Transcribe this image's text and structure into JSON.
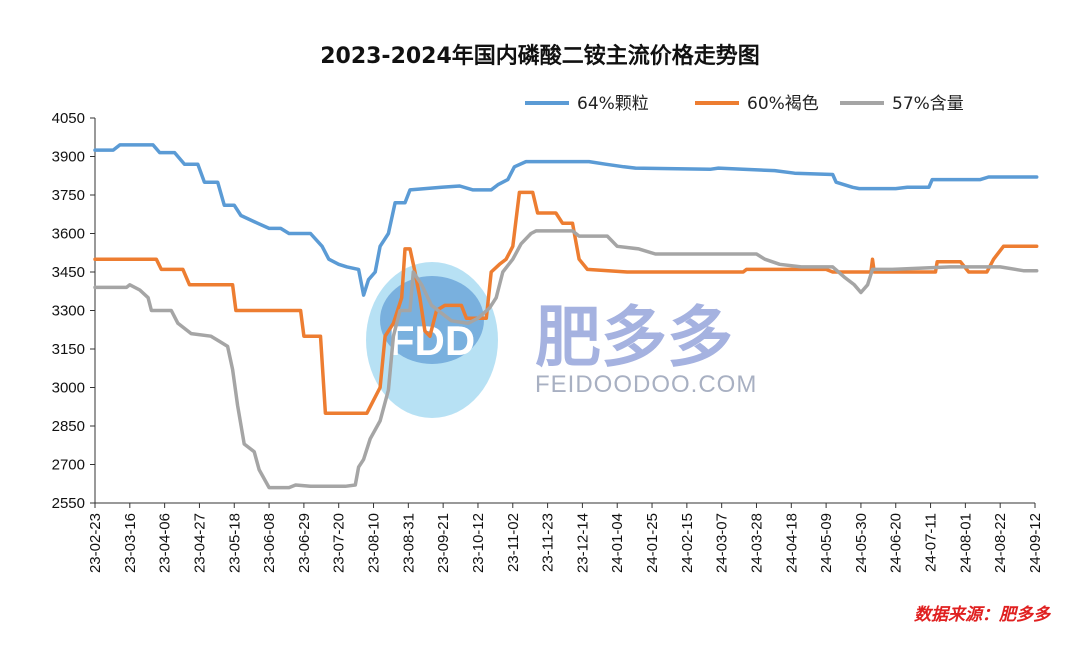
{
  "title": "2023-2024年国内磷酸二铵主流价格走势图",
  "source_note": "数据来源：肥多多",
  "watermark": {
    "cn": "肥多多",
    "en": "FEIDOODOO.COM",
    "logo": "FDD"
  },
  "chart_data": {
    "type": "line",
    "title": "2023-2024年国内磷酸二铵主流价格走势图",
    "xlabel": "",
    "ylabel": "",
    "ylim": [
      2550,
      4050
    ],
    "y_ticks": [
      2550,
      2700,
      2850,
      3000,
      3150,
      3300,
      3450,
      3600,
      3750,
      3900,
      4050
    ],
    "x_tick_labels": [
      "23-02-23",
      "23-03-16",
      "23-04-06",
      "23-04-27",
      "23-05-18",
      "23-06-08",
      "23-06-29",
      "23-07-20",
      "23-08-10",
      "23-08-31",
      "23-09-21",
      "23-10-12",
      "23-11-02",
      "23-11-23",
      "23-12-14",
      "24-01-04",
      "24-01-25",
      "24-02-15",
      "24-03-07",
      "24-03-28",
      "24-04-18",
      "24-05-09",
      "24-05-30",
      "24-06-20",
      "24-07-11",
      "24-08-01",
      "24-08-22",
      "24-09-12"
    ],
    "grid": false,
    "legend_position": "top-right",
    "series": [
      {
        "name": "64%颗粒",
        "color": "#5b9bd5",
        "points": [
          [
            "23-02-23",
            3925
          ],
          [
            "23-03-06",
            3925
          ],
          [
            "23-03-10",
            3945
          ],
          [
            "23-03-30",
            3945
          ],
          [
            "23-04-03",
            3915
          ],
          [
            "23-04-12",
            3915
          ],
          [
            "23-04-18",
            3870
          ],
          [
            "23-04-26",
            3870
          ],
          [
            "23-04-30",
            3800
          ],
          [
            "23-05-08",
            3800
          ],
          [
            "23-05-12",
            3710
          ],
          [
            "23-05-18",
            3710
          ],
          [
            "23-05-22",
            3670
          ],
          [
            "23-06-01",
            3640
          ],
          [
            "23-06-08",
            3620
          ],
          [
            "23-06-15",
            3620
          ],
          [
            "23-06-20",
            3600
          ],
          [
            "23-07-03",
            3600
          ],
          [
            "23-07-10",
            3550
          ],
          [
            "23-07-14",
            3500
          ],
          [
            "23-07-20",
            3480
          ],
          [
            "23-07-25",
            3470
          ],
          [
            "23-08-01",
            3460
          ],
          [
            "23-08-04",
            3360
          ],
          [
            "23-08-07",
            3420
          ],
          [
            "23-08-11",
            3450
          ],
          [
            "23-08-14",
            3550
          ],
          [
            "23-08-19",
            3600
          ],
          [
            "23-08-23",
            3720
          ],
          [
            "23-08-29",
            3720
          ],
          [
            "23-09-01",
            3770
          ],
          [
            "23-09-20",
            3780
          ],
          [
            "23-10-01",
            3785
          ],
          [
            "23-10-09",
            3770
          ],
          [
            "23-10-20",
            3770
          ],
          [
            "23-10-24",
            3790
          ],
          [
            "23-10-30",
            3810
          ],
          [
            "23-11-03",
            3860
          ],
          [
            "23-11-10",
            3880
          ],
          [
            "23-12-18",
            3880
          ],
          [
            "23-12-28",
            3870
          ],
          [
            "24-01-08",
            3860
          ],
          [
            "24-01-15",
            3855
          ],
          [
            "24-02-29",
            3850
          ],
          [
            "24-03-05",
            3855
          ],
          [
            "24-03-20",
            3850
          ],
          [
            "24-04-08",
            3845
          ],
          [
            "24-04-20",
            3835
          ],
          [
            "24-05-13",
            3830
          ],
          [
            "24-05-15",
            3800
          ],
          [
            "24-05-25",
            3780
          ],
          [
            "24-05-29",
            3775
          ],
          [
            "24-06-10",
            3775
          ],
          [
            "24-06-20",
            3775
          ],
          [
            "24-06-27",
            3780
          ],
          [
            "24-07-10",
            3780
          ],
          [
            "24-07-12",
            3810
          ],
          [
            "24-08-10",
            3810
          ],
          [
            "24-08-15",
            3820
          ],
          [
            "24-09-13",
            3820
          ]
        ]
      },
      {
        "name": "60%褐色",
        "color": "#ed7d31",
        "points": [
          [
            "23-02-23",
            3500
          ],
          [
            "23-04-01",
            3500
          ],
          [
            "23-04-04",
            3460
          ],
          [
            "23-04-17",
            3460
          ],
          [
            "23-04-21",
            3400
          ],
          [
            "23-05-17",
            3400
          ],
          [
            "23-05-19",
            3300
          ],
          [
            "23-06-27",
            3300
          ],
          [
            "23-06-29",
            3200
          ],
          [
            "23-07-09",
            3200
          ],
          [
            "23-07-12",
            2900
          ],
          [
            "23-08-06",
            2900
          ],
          [
            "23-08-10",
            2950
          ],
          [
            "23-08-14",
            3000
          ],
          [
            "23-08-17",
            3200
          ],
          [
            "23-08-22",
            3250
          ],
          [
            "23-08-27",
            3350
          ],
          [
            "23-08-29",
            3540
          ],
          [
            "23-09-01",
            3540
          ],
          [
            "23-09-04",
            3450
          ],
          [
            "23-09-07",
            3350
          ],
          [
            "23-09-10",
            3220
          ],
          [
            "23-09-13",
            3200
          ],
          [
            "23-09-17",
            3300
          ],
          [
            "23-09-22",
            3320
          ],
          [
            "23-10-02",
            3320
          ],
          [
            "23-10-05",
            3270
          ],
          [
            "23-10-17",
            3270
          ],
          [
            "23-10-20",
            3450
          ],
          [
            "23-10-25",
            3480
          ],
          [
            "23-10-29",
            3500
          ],
          [
            "23-11-02",
            3550
          ],
          [
            "23-11-06",
            3760
          ],
          [
            "23-11-14",
            3760
          ],
          [
            "23-11-17",
            3680
          ],
          [
            "23-11-28",
            3680
          ],
          [
            "23-12-02",
            3640
          ],
          [
            "23-12-08",
            3640
          ],
          [
            "23-12-12",
            3500
          ],
          [
            "23-12-17",
            3460
          ],
          [
            "24-01-10",
            3450
          ],
          [
            "24-03-20",
            3450
          ],
          [
            "24-03-22",
            3460
          ],
          [
            "24-05-09",
            3460
          ],
          [
            "24-05-13",
            3450
          ],
          [
            "24-06-05",
            3450
          ],
          [
            "24-06-06",
            3500
          ],
          [
            "24-06-07",
            3450
          ],
          [
            "24-07-14",
            3450
          ],
          [
            "24-07-15",
            3490
          ],
          [
            "24-07-29",
            3490
          ],
          [
            "24-08-03",
            3450
          ],
          [
            "24-08-14",
            3450
          ],
          [
            "24-08-18",
            3500
          ],
          [
            "24-08-24",
            3550
          ],
          [
            "24-09-13",
            3550
          ]
        ]
      },
      {
        "name": "57%含量",
        "color": "#a5a5a5",
        "points": [
          [
            "23-02-23",
            3390
          ],
          [
            "23-03-14",
            3390
          ],
          [
            "23-03-16",
            3400
          ],
          [
            "23-03-22",
            3380
          ],
          [
            "23-03-27",
            3350
          ],
          [
            "23-03-29",
            3300
          ],
          [
            "23-04-10",
            3300
          ],
          [
            "23-04-14",
            3250
          ],
          [
            "23-04-22",
            3210
          ],
          [
            "23-05-04",
            3200
          ],
          [
            "23-05-09",
            3180
          ],
          [
            "23-05-14",
            3160
          ],
          [
            "23-05-17",
            3070
          ],
          [
            "23-05-20",
            2930
          ],
          [
            "23-05-24",
            2780
          ],
          [
            "23-05-30",
            2750
          ],
          [
            "23-06-02",
            2680
          ],
          [
            "23-06-08",
            2610
          ],
          [
            "23-06-20",
            2610
          ],
          [
            "23-06-24",
            2620
          ],
          [
            "23-07-03",
            2615
          ],
          [
            "23-07-24",
            2615
          ],
          [
            "23-07-30",
            2620
          ],
          [
            "23-08-01",
            2690
          ],
          [
            "23-08-04",
            2720
          ],
          [
            "23-08-08",
            2800
          ],
          [
            "23-08-14",
            2870
          ],
          [
            "23-08-19",
            2990
          ],
          [
            "23-08-22",
            3200
          ],
          [
            "23-08-26",
            3300
          ],
          [
            "23-09-01",
            3300
          ],
          [
            "23-09-03",
            3450
          ],
          [
            "23-09-08",
            3400
          ],
          [
            "23-09-14",
            3320
          ],
          [
            "23-09-26",
            3260
          ],
          [
            "23-10-06",
            3250
          ],
          [
            "23-10-12",
            3270
          ],
          [
            "23-10-19",
            3310
          ],
          [
            "23-10-23",
            3350
          ],
          [
            "23-10-27",
            3450
          ],
          [
            "23-11-02",
            3500
          ],
          [
            "23-11-07",
            3560
          ],
          [
            "23-11-13",
            3600
          ],
          [
            "23-11-16",
            3610
          ],
          [
            "23-12-08",
            3610
          ],
          [
            "23-12-12",
            3590
          ],
          [
            "23-12-29",
            3590
          ],
          [
            "24-01-04",
            3550
          ],
          [
            "24-01-17",
            3540
          ],
          [
            "24-01-27",
            3520
          ],
          [
            "24-03-28",
            3520
          ],
          [
            "24-04-02",
            3500
          ],
          [
            "24-04-11",
            3480
          ],
          [
            "24-04-24",
            3470
          ],
          [
            "24-05-13",
            3470
          ],
          [
            "24-05-20",
            3430
          ],
          [
            "24-05-26",
            3400
          ],
          [
            "24-05-30",
            3370
          ],
          [
            "24-06-03",
            3400
          ],
          [
            "24-06-06",
            3460
          ],
          [
            "24-06-18",
            3460
          ],
          [
            "24-07-23",
            3470
          ],
          [
            "24-08-22",
            3470
          ],
          [
            "24-09-05",
            3455
          ],
          [
            "24-09-13",
            3455
          ]
        ]
      }
    ]
  }
}
